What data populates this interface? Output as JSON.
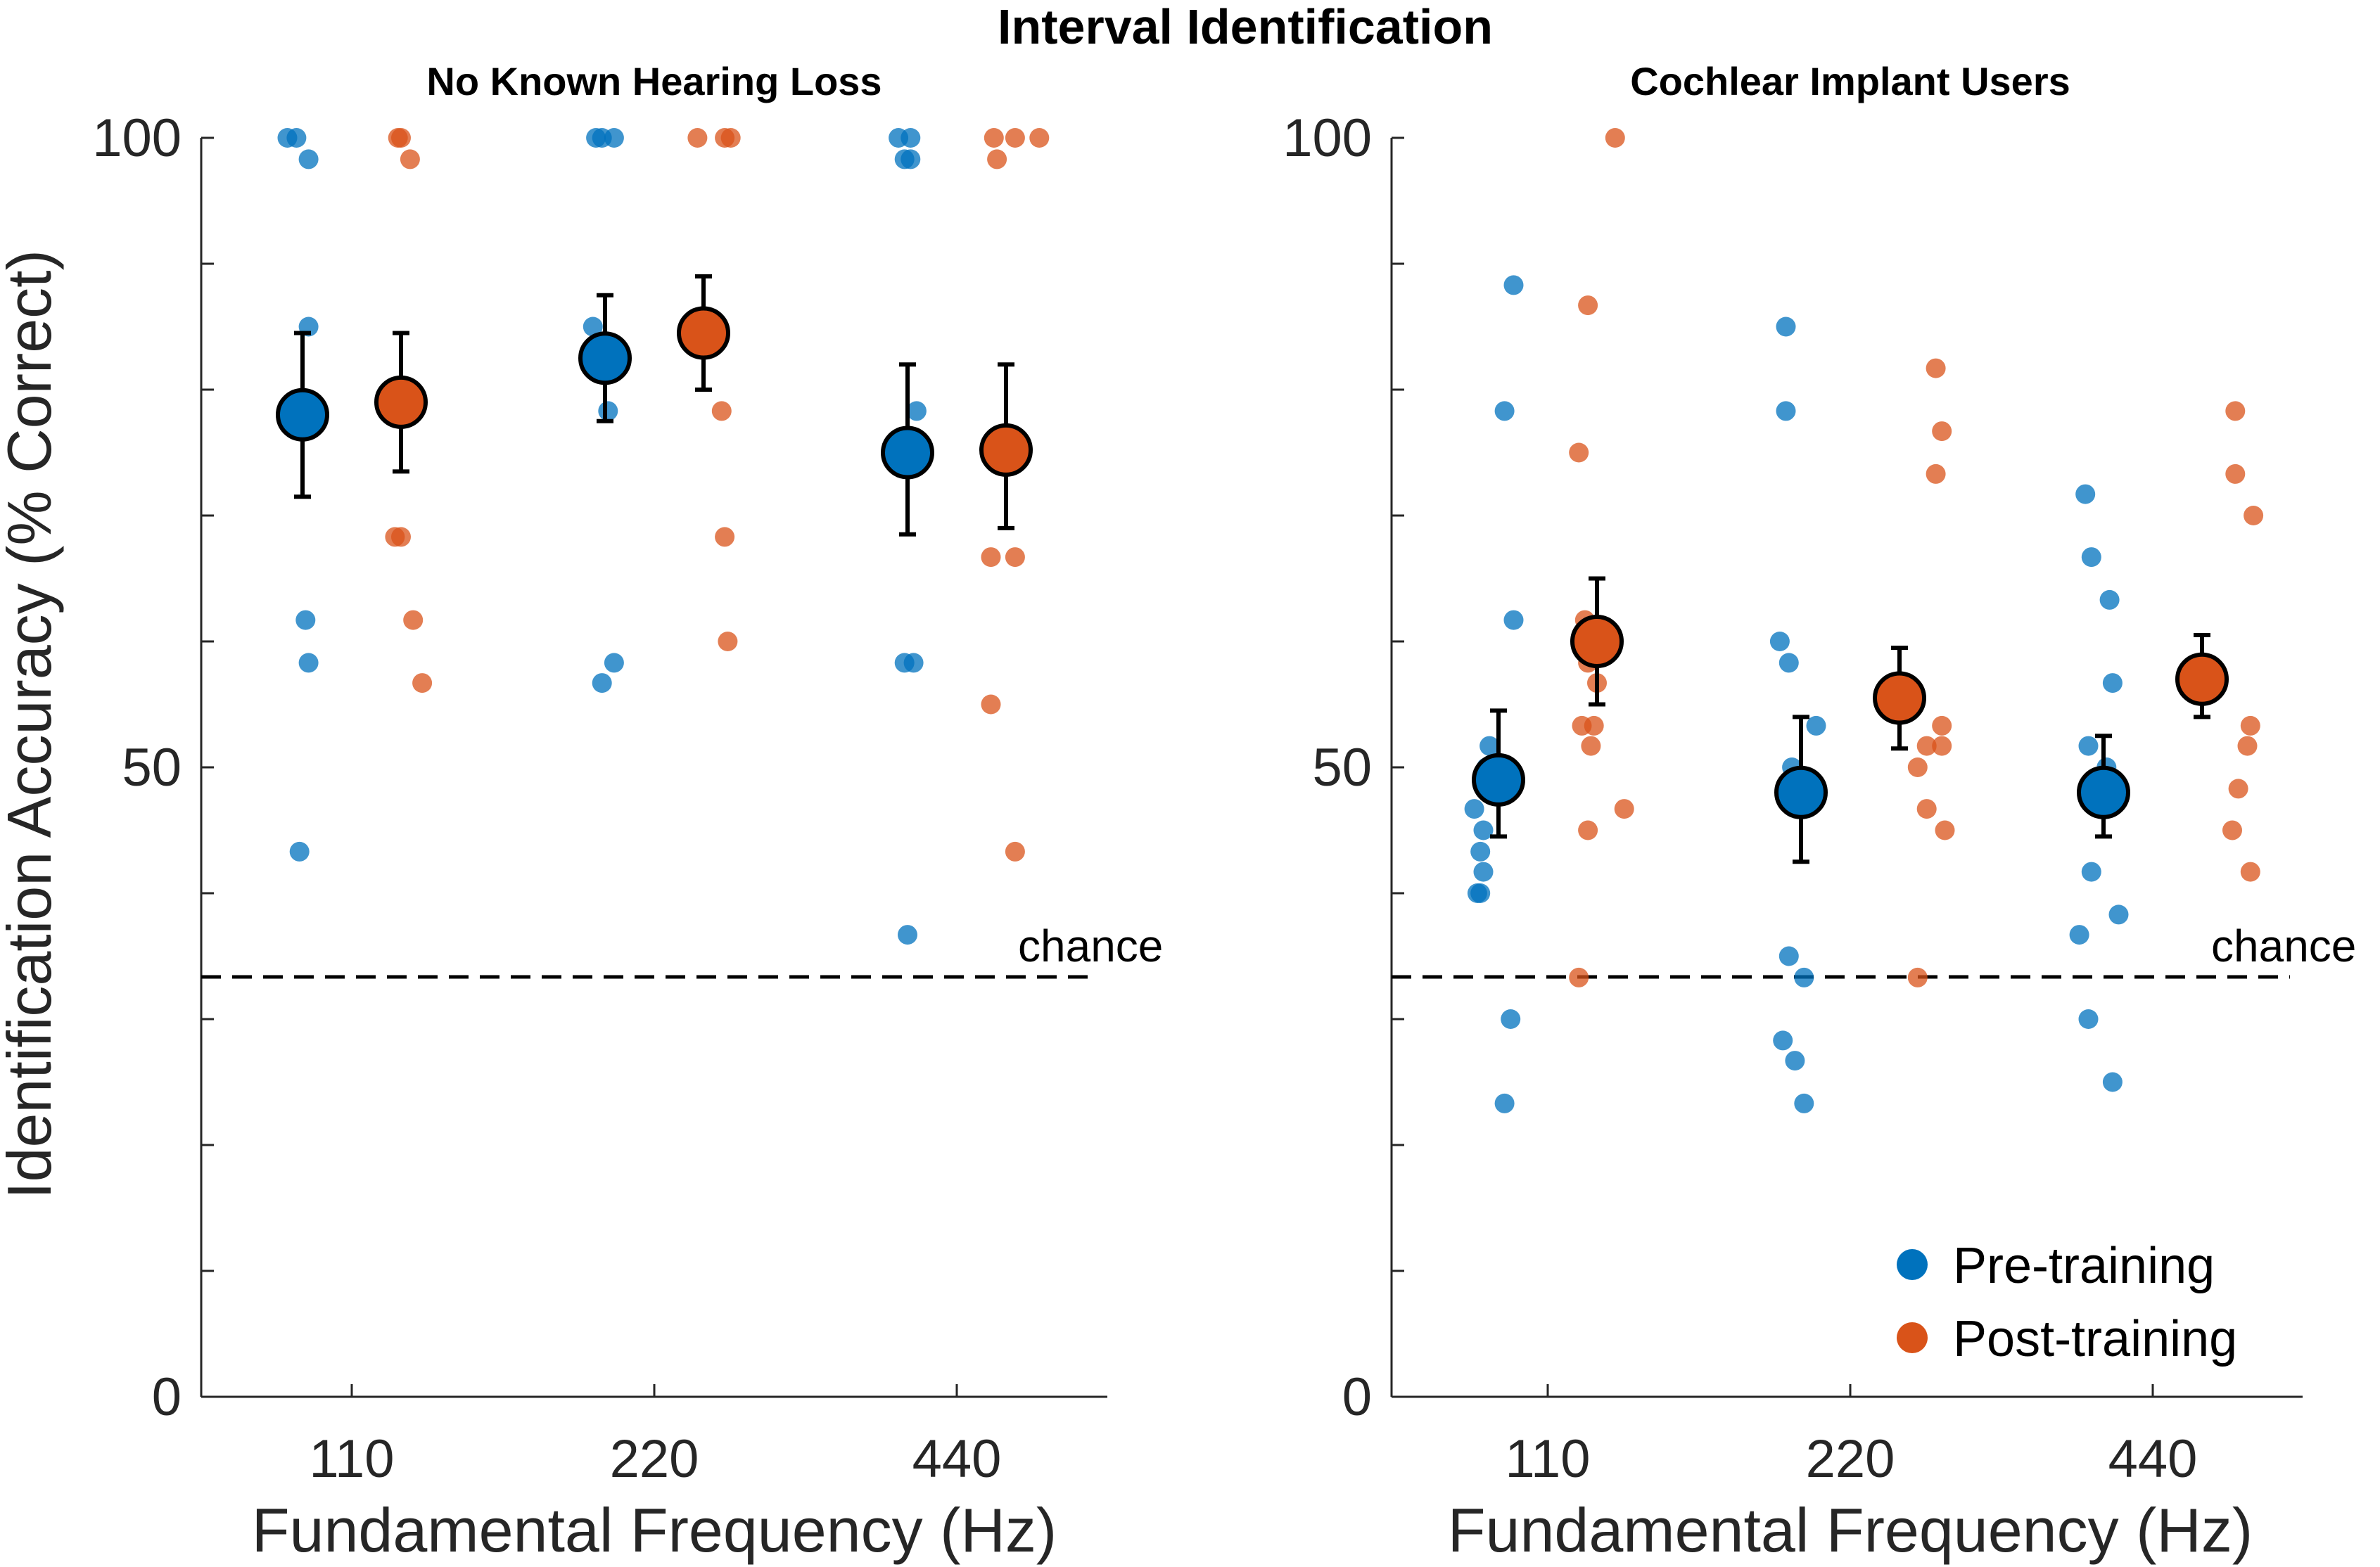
{
  "chart_data": {
    "title": "Interval Identification",
    "ylabel": "Identification Accuracy (% Correct)",
    "xlabel": "Fundamental Frequency (Hz)",
    "ylim": [
      0,
      100
    ],
    "y_ticks": [
      "0",
      "50",
      "100"
    ],
    "x_ticks": [
      "110",
      "220",
      "440"
    ],
    "chance_label": "chance",
    "chance_level": 33.3,
    "colors": {
      "pre": "#0072BD",
      "post": "#D95319"
    },
    "legend": {
      "position": "bottom-right",
      "entries": [
        "Pre-training",
        "Post-training"
      ]
    },
    "panels": [
      {
        "type": "scatter",
        "subtitle": "No Known Hearing Loss",
        "groups": [
          {
            "f0": "110",
            "condition": "pre",
            "mean": 78.0,
            "err": [
              71.5,
              84.5
            ],
            "points": [
              [
                -0.05,
                100
              ],
              [
                -0.02,
                100
              ],
              [
                0.02,
                98.3
              ],
              [
                0.02,
                85
              ],
              [
                0.01,
                61.7
              ],
              [
                0.02,
                58.3
              ],
              [
                -0.01,
                43.3
              ]
            ]
          },
          {
            "f0": "110",
            "condition": "post",
            "mean": 79.0,
            "err": [
              73.5,
              84.5
            ],
            "points": [
              [
                -0.01,
                100
              ],
              [
                0.0,
                100
              ],
              [
                0.03,
                98.3
              ],
              [
                -0.02,
                68.3
              ],
              [
                0.0,
                68.3
              ],
              [
                0.04,
                61.7
              ],
              [
                0.07,
                56.7
              ]
            ]
          },
          {
            "f0": "220",
            "condition": "pre",
            "mean": 82.5,
            "err": [
              77.5,
              87.5
            ],
            "points": [
              [
                -0.03,
                100
              ],
              [
                -0.01,
                100
              ],
              [
                0.03,
                100
              ],
              [
                -0.04,
                85
              ],
              [
                0.01,
                78.3
              ],
              [
                0.03,
                58.3
              ],
              [
                -0.01,
                56.7
              ]
            ]
          },
          {
            "f0": "220",
            "condition": "post",
            "mean": 84.5,
            "err": [
              80.0,
              89.0
            ],
            "points": [
              [
                -0.02,
                100
              ],
              [
                0.07,
                100
              ],
              [
                0.09,
                100
              ],
              [
                0.06,
                78.3
              ],
              [
                0.07,
                68.3
              ],
              [
                0.08,
                60
              ]
            ]
          },
          {
            "f0": "440",
            "condition": "pre",
            "mean": 75.0,
            "err": [
              68.5,
              82.0
            ],
            "points": [
              [
                -0.03,
                100
              ],
              [
                -0.01,
                98.3
              ],
              [
                0.01,
                98.3
              ],
              [
                0.01,
                100
              ],
              [
                0.03,
                78.3
              ],
              [
                -0.01,
                58.3
              ],
              [
                0.02,
                58.3
              ],
              [
                0.0,
                36.7
              ]
            ]
          },
          {
            "f0": "440",
            "condition": "post",
            "mean": 75.2,
            "err": [
              69.0,
              82.0
            ],
            "points": [
              [
                -0.04,
                100
              ],
              [
                0.03,
                100
              ],
              [
                0.11,
                100
              ],
              [
                -0.03,
                98.3
              ],
              [
                -0.05,
                66.7
              ],
              [
                0.03,
                66.7
              ],
              [
                -0.05,
                55
              ],
              [
                0.03,
                43.3
              ]
            ]
          }
        ]
      },
      {
        "type": "scatter",
        "subtitle": "Cochlear Implant Users",
        "groups": [
          {
            "f0": "110",
            "condition": "pre",
            "mean": 49.0,
            "err": [
              44.5,
              54.5
            ],
            "points": [
              [
                0.05,
                88.3
              ],
              [
                0.02,
                78.3
              ],
              [
                0.05,
                61.7
              ],
              [
                -0.03,
                51.7
              ],
              [
                -0.04,
                50
              ],
              [
                -0.08,
                46.7
              ],
              [
                -0.05,
                45
              ],
              [
                -0.06,
                43.3
              ],
              [
                -0.05,
                41.7
              ],
              [
                -0.07,
                40
              ],
              [
                -0.06,
                40
              ],
              [
                0.04,
                30
              ],
              [
                0.02,
                23.3
              ]
            ]
          },
          {
            "f0": "110",
            "condition": "post",
            "mean": 60.0,
            "err": [
              55.0,
              65.0
            ],
            "points": [
              [
                -0.03,
                86.7
              ],
              [
                -0.06,
                75
              ],
              [
                0.06,
                100
              ],
              [
                -0.04,
                61.7
              ],
              [
                -0.03,
                58.3
              ],
              [
                0.0,
                56.7
              ],
              [
                -0.05,
                53.3
              ],
              [
                -0.01,
                53.3
              ],
              [
                -0.02,
                51.7
              ],
              [
                0.09,
                46.7
              ],
              [
                -0.03,
                45
              ],
              [
                -0.06,
                33.3
              ]
            ]
          },
          {
            "f0": "220",
            "condition": "pre",
            "mean": 48.0,
            "err": [
              42.5,
              54.0
            ],
            "points": [
              [
                -0.05,
                85
              ],
              [
                -0.05,
                78.3
              ],
              [
                -0.07,
                60
              ],
              [
                -0.04,
                58.3
              ],
              [
                0.05,
                53.3
              ],
              [
                -0.03,
                50
              ],
              [
                0.04,
                48.3
              ],
              [
                -0.04,
                35
              ],
              [
                0.01,
                33.3
              ],
              [
                -0.06,
                28.3
              ],
              [
                -0.02,
                26.7
              ],
              [
                0.01,
                23.3
              ]
            ]
          },
          {
            "f0": "220",
            "condition": "post",
            "mean": 55.5,
            "err": [
              51.5,
              59.5
            ],
            "points": [
              [
                0.12,
                81.7
              ],
              [
                0.14,
                76.7
              ],
              [
                0.12,
                73.3
              ],
              [
                0.14,
                53.3
              ],
              [
                0.09,
                51.7
              ],
              [
                0.14,
                51.7
              ],
              [
                0.06,
                50
              ],
              [
                0.09,
                46.7
              ],
              [
                0.15,
                45
              ],
              [
                0.06,
                33.3
              ]
            ]
          },
          {
            "f0": "440",
            "condition": "pre",
            "mean": 48.0,
            "err": [
              44.5,
              52.5
            ],
            "points": [
              [
                -0.06,
                71.7
              ],
              [
                -0.04,
                66.7
              ],
              [
                0.02,
                63.3
              ],
              [
                0.03,
                56.7
              ],
              [
                -0.05,
                51.7
              ],
              [
                0.01,
                50
              ],
              [
                0.02,
                48.3
              ],
              [
                -0.04,
                41.7
              ],
              [
                0.05,
                38.3
              ],
              [
                -0.08,
                36.7
              ],
              [
                -0.05,
                30
              ],
              [
                0.03,
                25
              ]
            ]
          },
          {
            "f0": "440",
            "condition": "post",
            "mean": 57.0,
            "err": [
              54.0,
              60.5
            ],
            "points": [
              [
                0.11,
                78.3
              ],
              [
                0.11,
                73.3
              ],
              [
                0.17,
                70
              ],
              [
                0.16,
                53.3
              ],
              [
                0.15,
                51.7
              ],
              [
                0.12,
                48.3
              ],
              [
                0.1,
                45
              ],
              [
                0.16,
                41.7
              ]
            ]
          }
        ]
      }
    ]
  }
}
